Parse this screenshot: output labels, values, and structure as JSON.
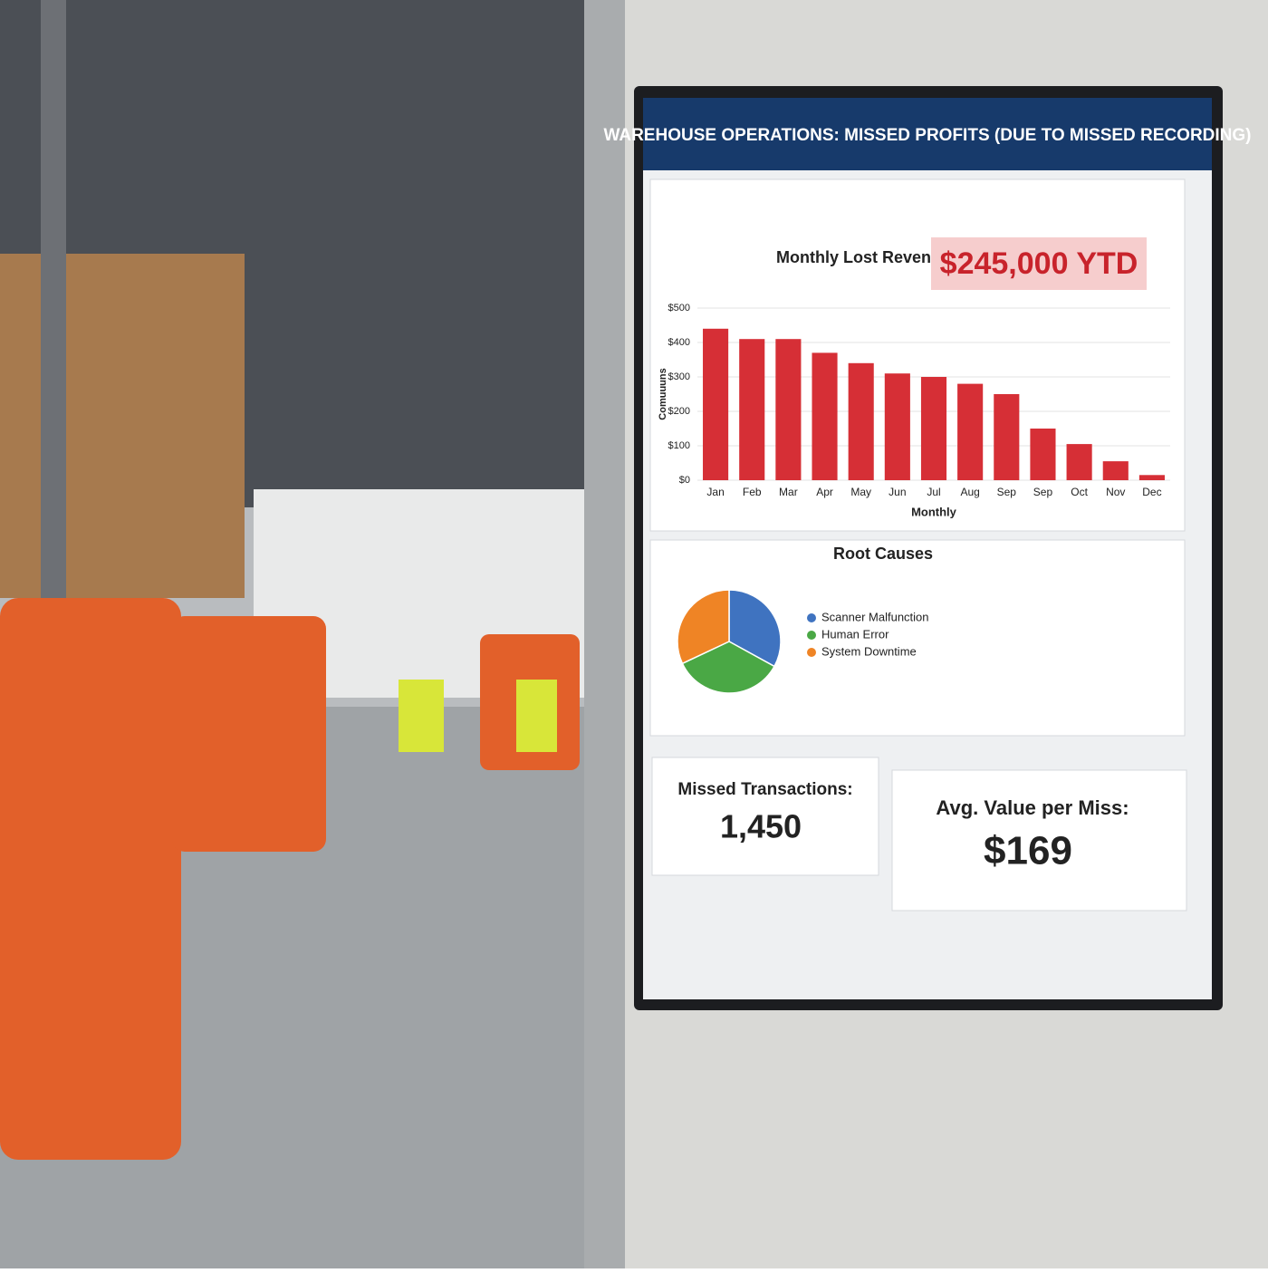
{
  "header": {
    "title": "WAREHOUSE OPERATIONS: MISSED PROFITS (DUE TO MISSED RECORDING)"
  },
  "chart_data": [
    {
      "type": "bar",
      "title": "Monthly Lost Revenue (Est.)",
      "annotation": "$245,000 YTD",
      "x_label": "Monthly",
      "y_label": "Comuuuns",
      "categories": [
        "Jan",
        "Feb",
        "Mar",
        "Apr",
        "May",
        "Jun",
        "Jul",
        "Aug",
        "Sep",
        "Sep",
        "Oct",
        "Nov",
        "Dec"
      ],
      "values": [
        440,
        410,
        410,
        370,
        340,
        310,
        300,
        280,
        250,
        150,
        105,
        55,
        15
      ],
      "color": "#d62f36",
      "ylim": [
        0,
        500
      ],
      "yticks": [
        {
          "value": 0,
          "label": "$0"
        },
        {
          "value": 100,
          "label": "$100"
        },
        {
          "value": 200,
          "label": "$200"
        },
        {
          "value": 300,
          "label": "$300"
        },
        {
          "value": 400,
          "label": "$400"
        },
        {
          "value": 500,
          "label": "$500"
        }
      ],
      "grid": true
    },
    {
      "type": "pie",
      "title": "Root Causes",
      "categories": [
        "Scanner Malfunction",
        "Human Error",
        "System Downtime"
      ],
      "values": [
        33,
        35,
        32
      ],
      "colors": [
        "#3f73c0",
        "#4aa845",
        "#ef8425"
      ],
      "legend": "right"
    }
  ],
  "kpis": [
    {
      "label": "Missed Transactions:",
      "value": "1,450"
    },
    {
      "label": "Avg. Value per Miss:",
      "value": "$169"
    }
  ]
}
